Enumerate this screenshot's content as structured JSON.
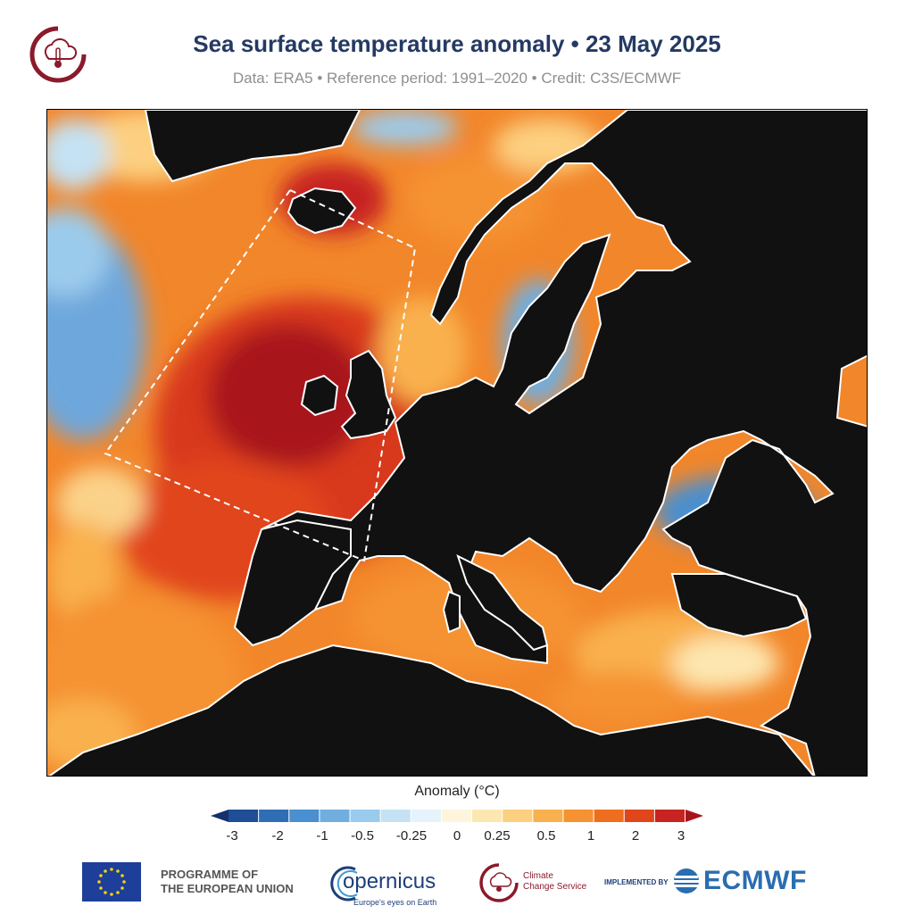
{
  "header": {
    "title": "Sea surface temperature anomaly • 23 May 2025",
    "subtitle": "Data: ERA5 • Reference period: 1991–2020 • Credit: C3S/ECMWF"
  },
  "legend": {
    "title": "Anomaly (°C)",
    "ticks": [
      "-3",
      "-2",
      "-1",
      "-0.5",
      "-0.25",
      "0",
      "0.25",
      "0.5",
      "1",
      "2",
      "3"
    ],
    "colors": [
      "#14306e",
      "#1f4e96",
      "#2f6eb5",
      "#4a8fcf",
      "#70aee0",
      "#9bcbec",
      "#c4e2f4",
      "#e6f3fa",
      "#fdf6dd",
      "#fde7b0",
      "#fcd080",
      "#f9b14e",
      "#f59231",
      "#ee6e1e",
      "#e1451a",
      "#c72320",
      "#a8141c"
    ]
  },
  "map": {
    "land_color": "#111111",
    "highlight_box": "dashed-outline"
  },
  "footer": {
    "eu_label_line1": "PROGRAMME OF",
    "eu_label_line2": "THE EUROPEAN UNION",
    "copernicus_word": "opernicus",
    "copernicus_tagline": "Europe's eyes on Earth",
    "c3s_line1": "Climate",
    "c3s_line2": "Change Service",
    "implemented_by": "IMPLEMENTED BY",
    "ecmwf_word": "ECMWF"
  }
}
